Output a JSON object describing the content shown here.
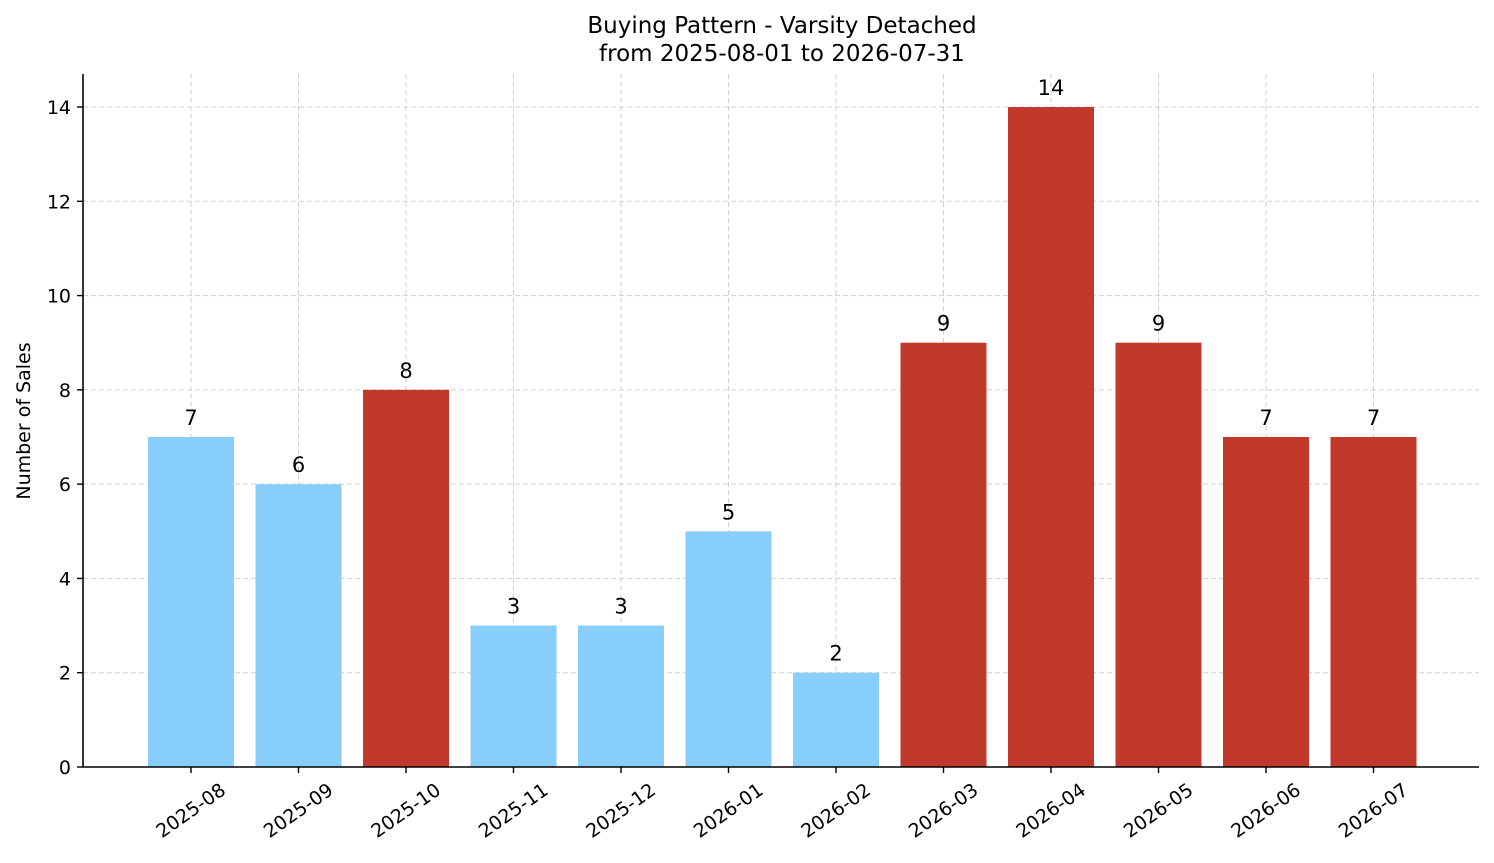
{
  "chart_data": {
    "type": "bar",
    "title": "Buying Pattern - Varsity Detached",
    "subtitle": "from 2025-08-01 to 2026-07-31",
    "xlabel": "",
    "ylabel": "Number of Sales",
    "ylim": [
      0,
      14.7
    ],
    "yticks": [
      0,
      2,
      4,
      6,
      8,
      10,
      12,
      14
    ],
    "grid": true,
    "categories": [
      "2025-08",
      "2025-09",
      "2025-10",
      "2025-11",
      "2025-12",
      "2026-01",
      "2026-02",
      "2026-03",
      "2026-04",
      "2026-05",
      "2026-06",
      "2026-07"
    ],
    "values": [
      7,
      6,
      8,
      3,
      3,
      5,
      2,
      9,
      14,
      9,
      7,
      7
    ],
    "bar_colors": [
      "#87CEFA",
      "#87CEFA",
      "#C0392B",
      "#87CEFA",
      "#87CEFA",
      "#87CEFA",
      "#87CEFA",
      "#C0392B",
      "#C0392B",
      "#C0392B",
      "#C0392B",
      "#C0392B"
    ]
  }
}
